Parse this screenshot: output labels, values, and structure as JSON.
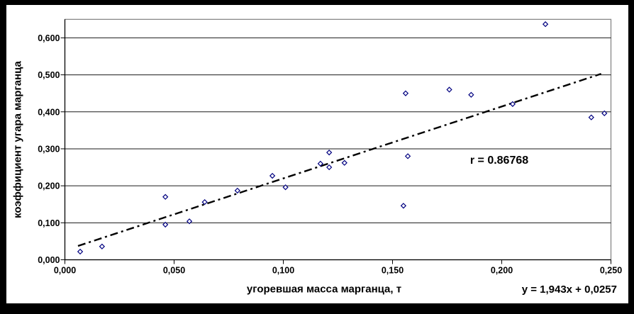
{
  "chart_data": {
    "type": "scatter",
    "title": "",
    "xlabel": "угоревшая масса марганца, т",
    "ylabel": "коэффициент угара марганца",
    "xlim": [
      0,
      0.25
    ],
    "ylim": [
      0,
      0.65
    ],
    "x_ticks": [
      0,
      0.05,
      0.1,
      0.15,
      0.2,
      0.25
    ],
    "x_tick_labels": [
      "0,000",
      "0,050",
      "0,100",
      "0,150",
      "0,200",
      "0,250"
    ],
    "y_ticks": [
      0,
      0.1,
      0.2,
      0.3,
      0.4,
      0.5,
      0.6
    ],
    "y_tick_labels": [
      "0,000",
      "0,100",
      "0,200",
      "0,300",
      "0,400",
      "0,500",
      "0,600"
    ],
    "grid": "horizontal",
    "legend": "none",
    "points": [
      [
        0.007,
        0.022
      ],
      [
        0.017,
        0.036
      ],
      [
        0.046,
        0.17
      ],
      [
        0.046,
        0.095
      ],
      [
        0.057,
        0.104
      ],
      [
        0.064,
        0.156
      ],
      [
        0.079,
        0.187
      ],
      [
        0.095,
        0.227
      ],
      [
        0.101,
        0.196
      ],
      [
        0.117,
        0.26
      ],
      [
        0.121,
        0.29
      ],
      [
        0.121,
        0.25
      ],
      [
        0.128,
        0.262
      ],
      [
        0.155,
        0.146
      ],
      [
        0.157,
        0.28
      ],
      [
        0.156,
        0.45
      ],
      [
        0.176,
        0.46
      ],
      [
        0.186,
        0.446
      ],
      [
        0.205,
        0.421
      ],
      [
        0.22,
        0.637
      ],
      [
        0.241,
        0.385
      ],
      [
        0.247,
        0.396
      ]
    ],
    "trendline": {
      "slope": 1.943,
      "intercept": 0.0257,
      "x_start": 0.006,
      "x_end": 0.2455,
      "style": "dash-dot",
      "label": "y = 1,943x + 0,0257"
    },
    "annotation_r": "r = 0.86768",
    "marker": {
      "shape": "open-diamond",
      "color": "#000080",
      "size": 6.6
    },
    "colors": {
      "background": "#ffffff",
      "frame": "#000000",
      "plot_border": "#808080",
      "gridline": "#1a1a1a",
      "axis": "#000000",
      "trendline": "#000000",
      "text": "#000000"
    }
  }
}
